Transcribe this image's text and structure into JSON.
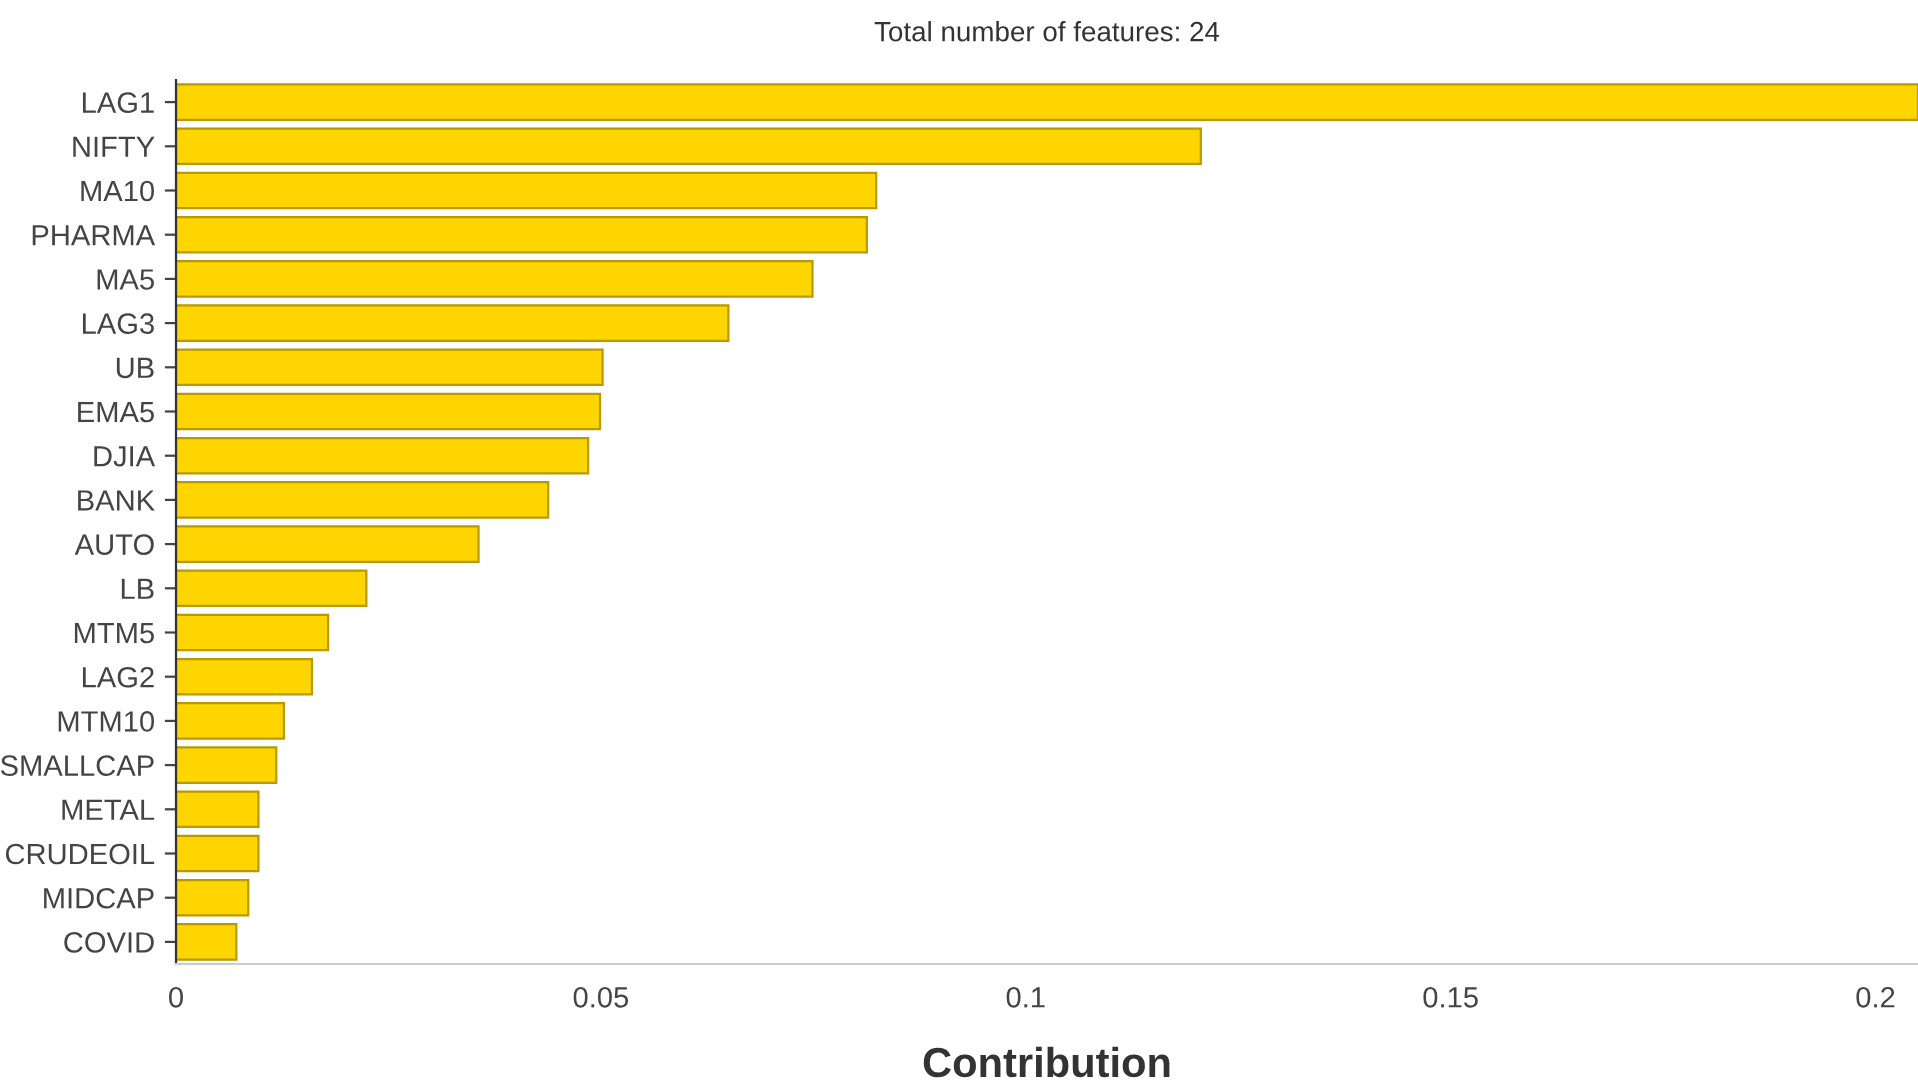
{
  "chart_data": {
    "type": "bar",
    "orientation": "horizontal",
    "title": "Total number of features: 24",
    "xlabel": "Contribution",
    "categories": [
      "LAG1",
      "NIFTY",
      "MA10",
      "PHARMA",
      "MA5",
      "LAG3",
      "UB",
      "EMA5",
      "DJIA",
      "BANK",
      "AUTO",
      "LB",
      "MTM5",
      "LAG2",
      "MTM10",
      "SMALLCAP",
      "METAL",
      "CRUDEOIL",
      "MIDCAP",
      "COVID"
    ],
    "values": [
      0.205,
      0.1206,
      0.0824,
      0.0813,
      0.0749,
      0.065,
      0.0502,
      0.0499,
      0.0485,
      0.0438,
      0.0356,
      0.0224,
      0.0179,
      0.016,
      0.0127,
      0.0118,
      0.0097,
      0.0097,
      0.0085,
      0.0071
    ],
    "color": "#ffd500",
    "xlim": [
      0,
      0.205
    ],
    "xticks": [
      0,
      0.05,
      0.1,
      0.15,
      0.2
    ],
    "grid": false,
    "legend": false
  }
}
